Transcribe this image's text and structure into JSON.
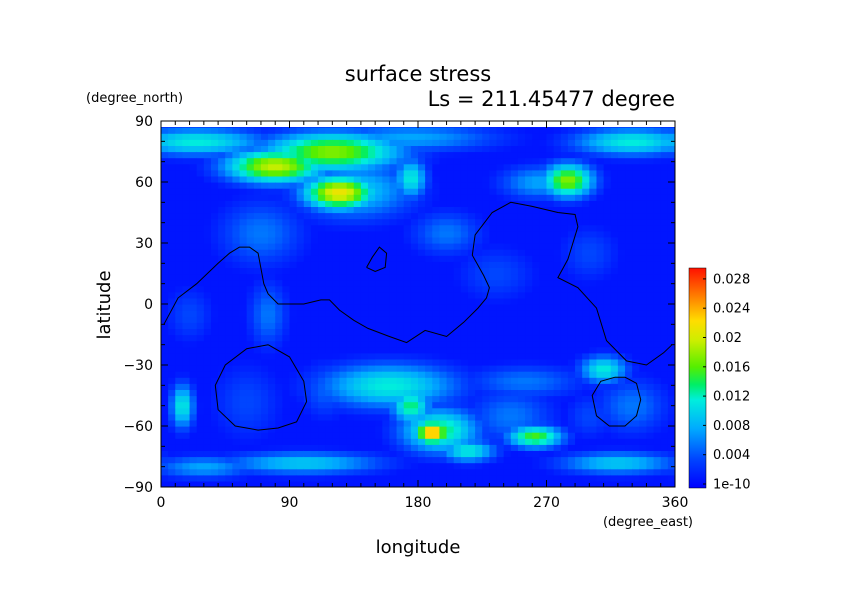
{
  "chart_data": {
    "type": "heatmap",
    "title": "surface stress",
    "subtitle": "Ls = 211.45477 degree",
    "xlabel": "longitude",
    "ylabel": "latitude",
    "x_unit": "(degree_east)",
    "y_unit": "(degree_north)",
    "xlim": [
      0,
      360
    ],
    "ylim": [
      -90,
      90
    ],
    "xticks": [
      "0",
      "90",
      "180",
      "270",
      "360"
    ],
    "yticks": [
      "90",
      "60",
      "30",
      "0",
      "−30",
      "−60",
      "−90"
    ],
    "colorbar": {
      "range": [
        1e-10,
        0.03
      ],
      "ticks": [
        "1e-10",
        "0.004",
        "0.008",
        "0.012",
        "0.016",
        "0.02",
        "0.024",
        "0.028"
      ]
    },
    "grid": false,
    "legend": "colorbar-right",
    "features": [
      {
        "lon": 120,
        "lat": 75,
        "value": 0.018,
        "slon": 35,
        "slat": 7
      },
      {
        "lon": 80,
        "lat": 68,
        "value": 0.02,
        "slon": 25,
        "slat": 6
      },
      {
        "lon": 25,
        "lat": 80,
        "value": 0.012,
        "slon": 35,
        "slat": 5
      },
      {
        "lon": 330,
        "lat": 80,
        "value": 0.012,
        "slon": 30,
        "slat": 5
      },
      {
        "lon": 175,
        "lat": 82,
        "value": 0.008,
        "slon": 45,
        "slat": 5
      },
      {
        "lon": 125,
        "lat": 55,
        "value": 0.022,
        "slon": 18,
        "slat": 6
      },
      {
        "lon": 135,
        "lat": 56,
        "value": 0.01,
        "slon": 30,
        "slat": 10
      },
      {
        "lon": 175,
        "lat": 62,
        "value": 0.012,
        "slon": 8,
        "slat": 7
      },
      {
        "lon": 285,
        "lat": 61,
        "value": 0.018,
        "slon": 13,
        "slat": 6
      },
      {
        "lon": 265,
        "lat": 60,
        "value": 0.008,
        "slon": 20,
        "slat": 6
      },
      {
        "lon": 70,
        "lat": 35,
        "value": 0.006,
        "slon": 22,
        "slat": 12
      },
      {
        "lon": 200,
        "lat": 35,
        "value": 0.006,
        "slon": 18,
        "slat": 8
      },
      {
        "lon": 300,
        "lat": 25,
        "value": 0.004,
        "slon": 15,
        "slat": 10
      },
      {
        "lon": 75,
        "lat": -5,
        "value": 0.006,
        "slon": 10,
        "slat": 12
      },
      {
        "lon": 20,
        "lat": -5,
        "value": 0.004,
        "slon": 12,
        "slat": 10
      },
      {
        "lon": 15,
        "lat": -50,
        "value": 0.012,
        "slon": 6,
        "slat": 8
      },
      {
        "lon": 60,
        "lat": -48,
        "value": 0.004,
        "slon": 18,
        "slat": 14
      },
      {
        "lon": 115,
        "lat": -42,
        "value": 0.005,
        "slon": 12,
        "slat": 10
      },
      {
        "lon": 160,
        "lat": -40,
        "value": 0.012,
        "slon": 35,
        "slat": 8
      },
      {
        "lon": 175,
        "lat": -50,
        "value": 0.014,
        "slon": 10,
        "slat": 6
      },
      {
        "lon": 190,
        "lat": -63,
        "value": 0.026,
        "slon": 8,
        "slat": 4
      },
      {
        "lon": 195,
        "lat": -62,
        "value": 0.014,
        "slon": 20,
        "slat": 8
      },
      {
        "lon": 215,
        "lat": -72,
        "value": 0.012,
        "slon": 14,
        "slat": 4
      },
      {
        "lon": 245,
        "lat": -55,
        "value": 0.006,
        "slon": 22,
        "slat": 10
      },
      {
        "lon": 262,
        "lat": -65,
        "value": 0.016,
        "slon": 14,
        "slat": 4
      },
      {
        "lon": 255,
        "lat": -38,
        "value": 0.006,
        "slon": 30,
        "slat": 6
      },
      {
        "lon": 310,
        "lat": -32,
        "value": 0.012,
        "slon": 12,
        "slat": 5
      },
      {
        "lon": 330,
        "lat": -50,
        "value": 0.006,
        "slon": 18,
        "slat": 10
      },
      {
        "lon": 300,
        "lat": -55,
        "value": 0.004,
        "slon": 12,
        "slat": 8
      },
      {
        "lon": 100,
        "lat": -78,
        "value": 0.01,
        "slon": 40,
        "slat": 4
      },
      {
        "lon": 30,
        "lat": -80,
        "value": 0.008,
        "slon": 25,
        "slat": 4
      },
      {
        "lon": 320,
        "lat": -78,
        "value": 0.01,
        "slon": 30,
        "slat": 4
      },
      {
        "lon": 235,
        "lat": 15,
        "value": 0.004,
        "slon": 20,
        "slat": 10
      }
    ],
    "contours": [
      [
        [
          2,
          -10
        ],
        [
          12,
          3
        ],
        [
          25,
          10
        ],
        [
          40,
          20
        ],
        [
          48,
          25
        ],
        [
          55,
          28
        ],
        [
          62,
          28
        ],
        [
          68,
          25
        ],
        [
          72,
          10
        ],
        [
          75,
          5
        ],
        [
          82,
          0
        ],
        [
          100,
          0
        ],
        [
          112,
          2
        ],
        [
          118,
          2
        ],
        [
          125,
          -3
        ],
        [
          135,
          -8
        ],
        [
          145,
          -12
        ],
        [
          160,
          -16
        ],
        [
          172,
          -19
        ],
        [
          185,
          -13
        ],
        [
          200,
          -16
        ],
        [
          212,
          -9
        ],
        [
          222,
          -2
        ],
        [
          228,
          3
        ],
        [
          230,
          8
        ],
        [
          226,
          14
        ],
        [
          218,
          24
        ],
        [
          220,
          34
        ],
        [
          232,
          45
        ],
        [
          245,
          50
        ],
        [
          260,
          48
        ],
        [
          278,
          45
        ],
        [
          290,
          44
        ],
        [
          292,
          38
        ],
        [
          285,
          22
        ],
        [
          278,
          13
        ],
        [
          292,
          8
        ],
        [
          305,
          -2
        ],
        [
          312,
          -18
        ],
        [
          326,
          -28
        ],
        [
          340,
          -30
        ],
        [
          352,
          -24
        ],
        [
          358,
          -20
        ]
      ],
      [
        [
          144,
          18
        ],
        [
          148,
          23
        ],
        [
          153,
          28
        ],
        [
          158,
          25
        ],
        [
          157,
          18
        ],
        [
          150,
          16
        ],
        [
          144,
          18
        ]
      ],
      [
        [
          75,
          -20
        ],
        [
          90,
          -26
        ],
        [
          100,
          -38
        ],
        [
          102,
          -48
        ],
        [
          95,
          -58
        ],
        [
          82,
          -61
        ],
        [
          68,
          -62
        ],
        [
          52,
          -60
        ],
        [
          40,
          -52
        ],
        [
          38,
          -40
        ],
        [
          45,
          -30
        ],
        [
          60,
          -22
        ],
        [
          75,
          -20
        ]
      ],
      [
        [
          325,
          -36
        ],
        [
          333,
          -39
        ],
        [
          336,
          -47
        ],
        [
          333,
          -55
        ],
        [
          325,
          -60
        ],
        [
          314,
          -60
        ],
        [
          305,
          -55
        ],
        [
          302,
          -45
        ],
        [
          308,
          -38
        ],
        [
          318,
          -36
        ],
        [
          325,
          -36
        ]
      ]
    ]
  }
}
